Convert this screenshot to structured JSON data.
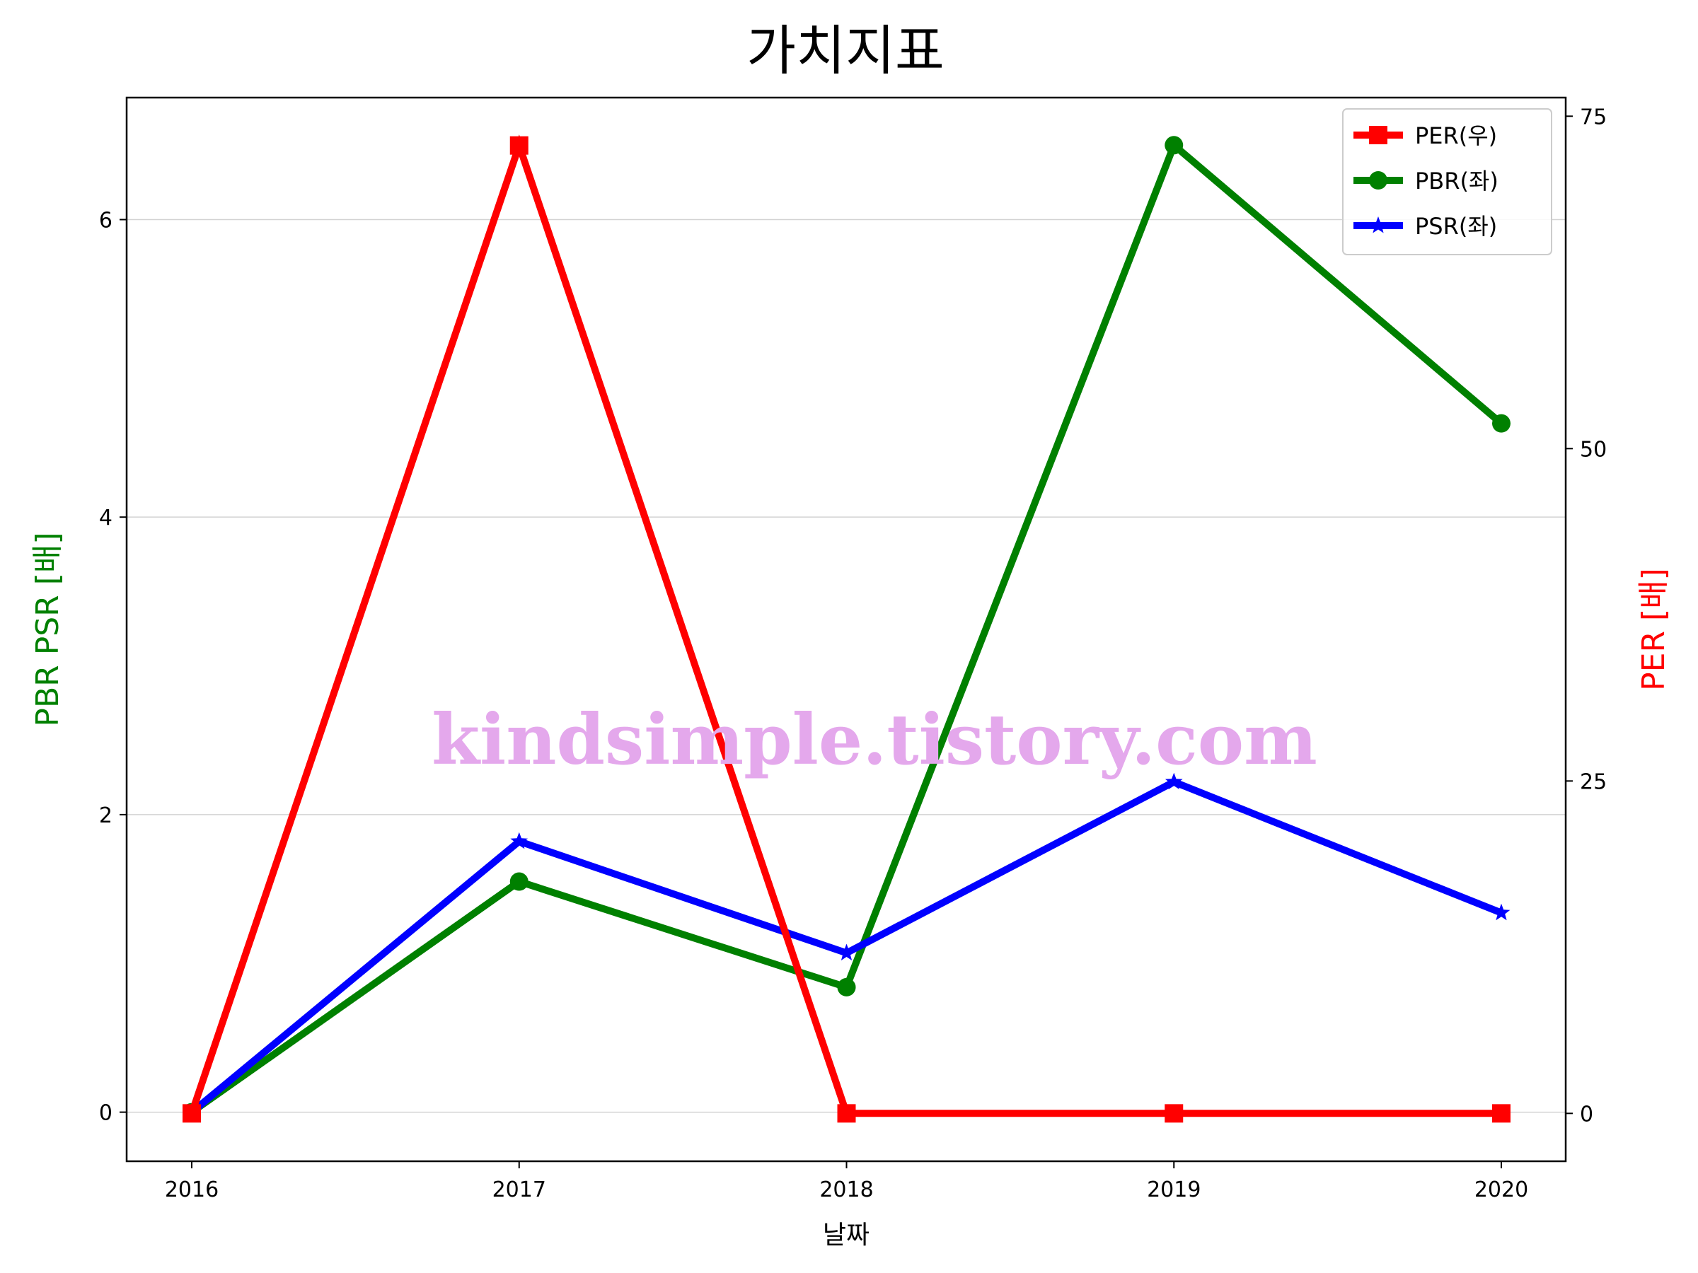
{
  "chart_data": {
    "type": "line",
    "title": "가치지표",
    "xlabel": "날짜",
    "ylabel_left": "PBR PSR [배]",
    "ylabel_right": "PER [배]",
    "ylabel_left_color": "#008000",
    "ylabel_right_color": "#ff0000",
    "x": [
      "2016",
      "2017",
      "2018",
      "2019",
      "2020"
    ],
    "ylim_left": [
      -0.33,
      6.82
    ],
    "ylim_right": [
      -3.6,
      76.4
    ],
    "yticks_left": [
      0,
      2,
      4,
      6
    ],
    "yticks_right": [
      0,
      25,
      50,
      75
    ],
    "grid": "horizontal (left axis)",
    "legend_position": "top-right",
    "series": [
      {
        "name": "PER(우)",
        "axis": "right",
        "color": "#ff0000",
        "marker": "square",
        "values": [
          0,
          72.8,
          0,
          0,
          0
        ]
      },
      {
        "name": "PBR(좌)",
        "axis": "left",
        "color": "#008000",
        "marker": "circle",
        "values": [
          0,
          1.55,
          0.84,
          6.5,
          4.63
        ]
      },
      {
        "name": "PSR(좌)",
        "axis": "left",
        "color": "#0000ff",
        "marker": "star",
        "values": [
          0,
          1.82,
          1.07,
          2.22,
          1.34
        ]
      }
    ],
    "watermark": "kindsimple.tistory.com",
    "watermark_color": "#e4a8ec"
  }
}
